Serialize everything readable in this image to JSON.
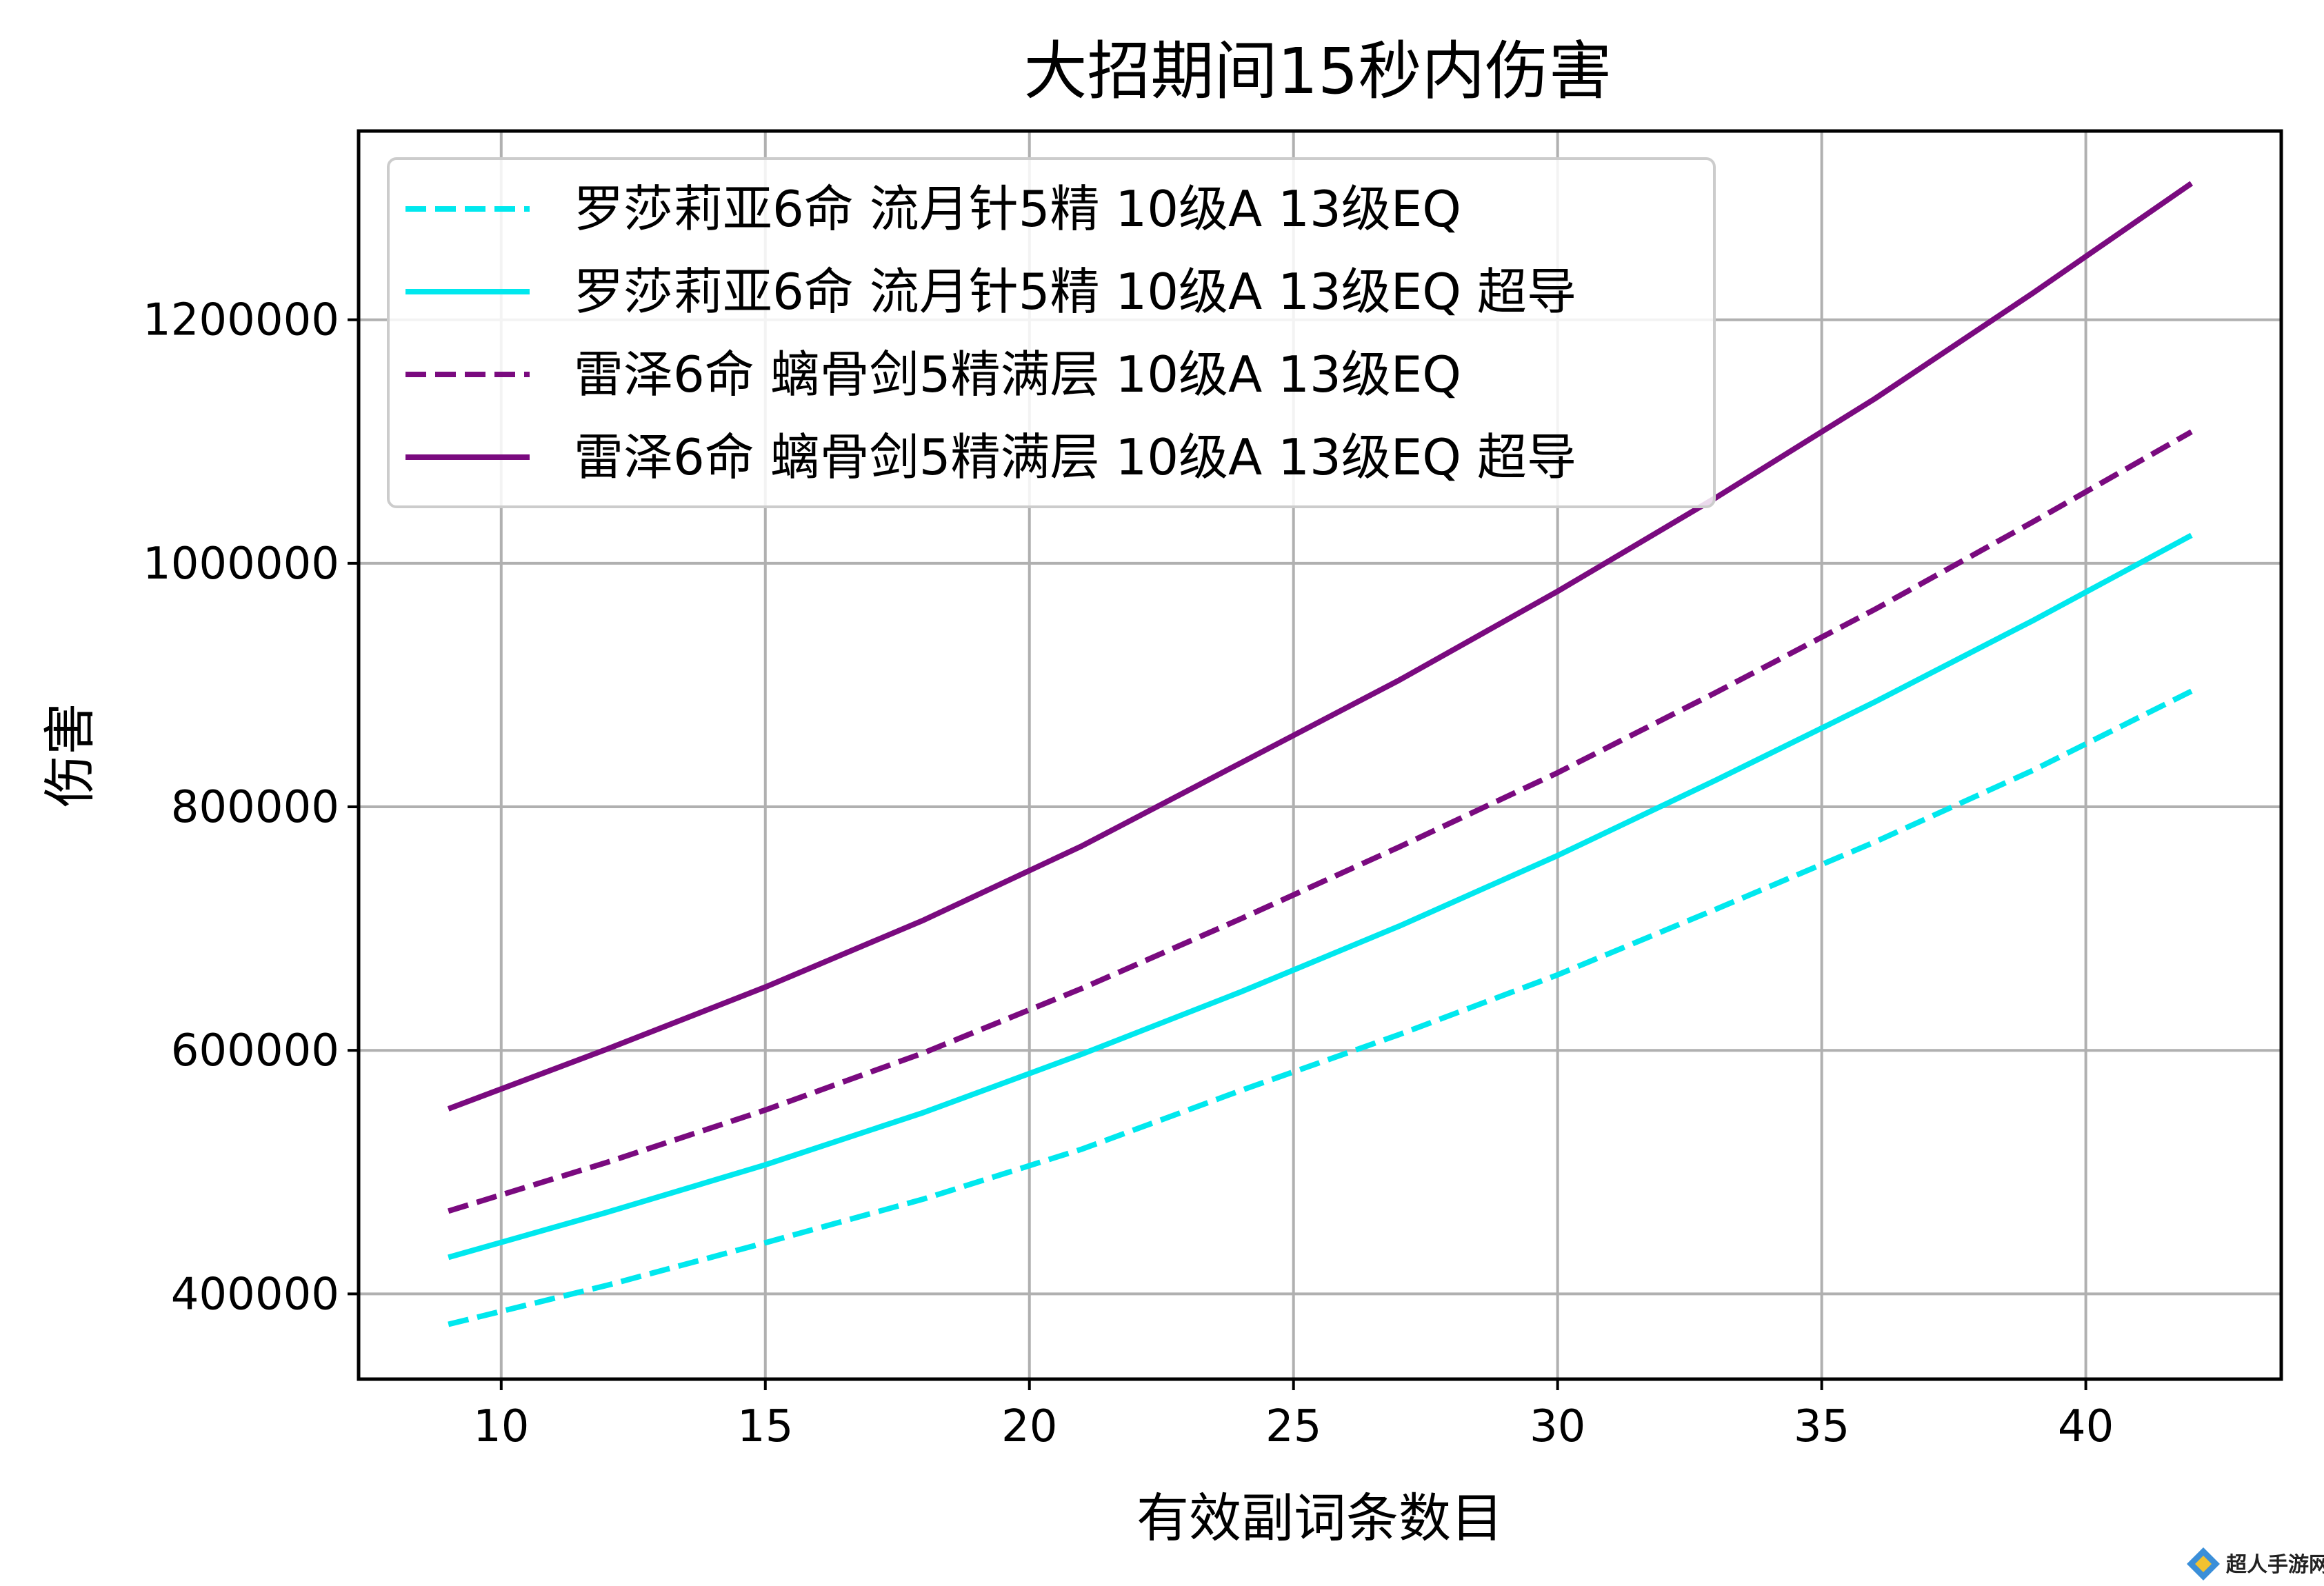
{
  "chart_data": {
    "type": "line",
    "title": "大招期间15秒内伤害",
    "xlabel": "有效副词条数目",
    "ylabel": "伤害",
    "xlim": [
      7.3,
      43.7
    ],
    "ylim": [
      330000,
      1355000
    ],
    "xticks": [
      10,
      15,
      20,
      25,
      30,
      35,
      40
    ],
    "yticks": [
      400000,
      600000,
      800000,
      1000000,
      1200000
    ],
    "grid": true,
    "legend_position": "upper-left",
    "series": [
      {
        "name": "罗莎莉亚6命 流月针5精 10级A 13级EQ",
        "color": "#00e8ee",
        "dash": "dashed",
        "x": [
          9,
          12,
          15,
          18,
          21,
          24,
          27,
          30,
          33,
          36,
          39,
          42
        ],
        "y": [
          375000,
          407000,
          442000,
          478000,
          519000,
          567000,
          613000,
          662000,
          716000,
          771000,
          830000,
          895000
        ]
      },
      {
        "name": "罗莎莉亚6命 流月针5精 10级A 13级EQ 超导",
        "color": "#00e8ee",
        "dash": "solid",
        "x": [
          9,
          12,
          15,
          18,
          21,
          24,
          27,
          30,
          33,
          36,
          39,
          42
        ],
        "y": [
          430000,
          467000,
          506000,
          549000,
          597000,
          648000,
          702000,
          760000,
          822000,
          886000,
          953000,
          1023000
        ]
      },
      {
        "name": "雷泽6命 螭骨剑5精满层 10级A 13级EQ",
        "color": "#7a0a7f",
        "dash": "dashed",
        "x": [
          9,
          12,
          15,
          18,
          21,
          24,
          27,
          30,
          33,
          36,
          39,
          42
        ],
        "y": [
          468000,
          508000,
          551000,
          598000,
          651000,
          708000,
          767000,
          828000,
          894000,
          962000,
          1034000,
          1108000
        ]
      },
      {
        "name": "雷泽6命 螭骨剑5精满层 10级A 13级EQ 超导",
        "color": "#7a0a7f",
        "dash": "solid",
        "x": [
          9,
          12,
          15,
          18,
          21,
          24,
          27,
          30,
          33,
          36,
          39,
          42
        ],
        "y": [
          552000,
          601000,
          652000,
          707000,
          768000,
          836000,
          904000,
          977000,
          1054000,
          1135000,
          1222000,
          1312000
        ]
      }
    ]
  },
  "watermark": {
    "text": "超人手游网"
  }
}
